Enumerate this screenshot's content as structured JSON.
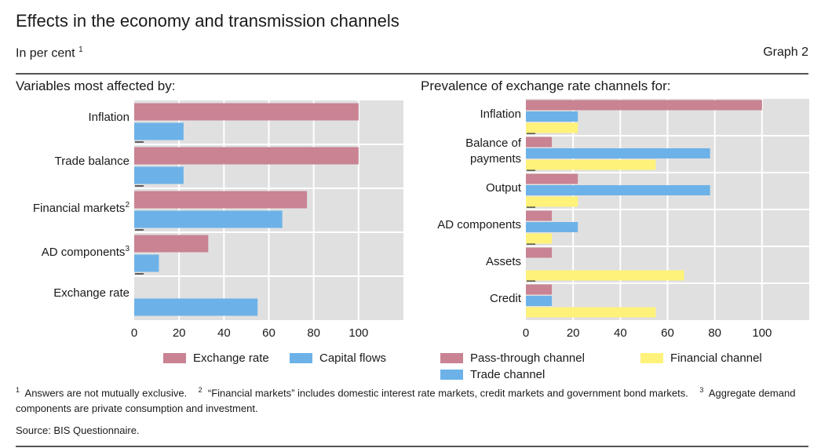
{
  "header": {
    "title": "Effects in the economy and transmission channels",
    "subtitle": "In per cent",
    "subtitle_note": "1",
    "graph_number": "Graph 2"
  },
  "colors": {
    "pink": "#c98393",
    "blue": "#6cb2e8",
    "yellow": "#fff27a",
    "plot_bg": "#e0e0e0",
    "grid": "#ffffff"
  },
  "chart_data": [
    {
      "type": "bar",
      "orientation": "horizontal",
      "title": "Variables most affected by:",
      "categories": [
        "Inflation",
        "Trade balance",
        "Financial markets",
        "AD components",
        "Exchange rate"
      ],
      "category_notes": [
        "",
        "",
        "2",
        "3",
        ""
      ],
      "series": [
        {
          "name": "Exchange rate",
          "color": "#c98393",
          "values": [
            100,
            100,
            77,
            33,
            0
          ]
        },
        {
          "name": "Capital flows",
          "color": "#6cb2e8",
          "values": [
            22,
            22,
            66,
            11,
            55
          ]
        }
      ],
      "xlim": [
        0,
        120
      ],
      "xticks": [
        0,
        20,
        40,
        60,
        80,
        100
      ],
      "xlabel": "",
      "ylabel": "",
      "grid": true,
      "legend": "bottom"
    },
    {
      "type": "bar",
      "orientation": "horizontal",
      "title": "Prevalence of exchange rate channels for:",
      "categories": [
        "Inflation",
        "Balance of payments",
        "Output",
        "AD components",
        "Assets",
        "Credit"
      ],
      "category_lines": [
        [
          "Inflation"
        ],
        [
          "Balance of",
          "payments"
        ],
        [
          "Output"
        ],
        [
          "AD components"
        ],
        [
          "Assets"
        ],
        [
          "Credit"
        ]
      ],
      "series": [
        {
          "name": "Pass-through channel",
          "color": "#c98393",
          "values": [
            100,
            11,
            22,
            11,
            11,
            11
          ]
        },
        {
          "name": "Trade channel",
          "color": "#6cb2e8",
          "values": [
            22,
            78,
            78,
            22,
            0,
            11
          ]
        },
        {
          "name": "Financial channel",
          "color": "#fff27a",
          "values": [
            22,
            55,
            22,
            11,
            67,
            55
          ]
        }
      ],
      "xlim": [
        0,
        120
      ],
      "xticks": [
        0,
        20,
        40,
        60,
        80,
        100
      ],
      "xlabel": "",
      "ylabel": "",
      "grid": true,
      "legend": "bottom"
    }
  ],
  "footnotes": [
    {
      "mark": "1",
      "text": "Answers are not mutually exclusive."
    },
    {
      "mark": "2",
      "text": "“Financial markets” includes domestic interest rate markets, credit markets and government bond markets."
    },
    {
      "mark": "3",
      "text": "Aggregate demand components are private consumption and investment."
    }
  ],
  "source": "Source: BIS Questionnaire."
}
